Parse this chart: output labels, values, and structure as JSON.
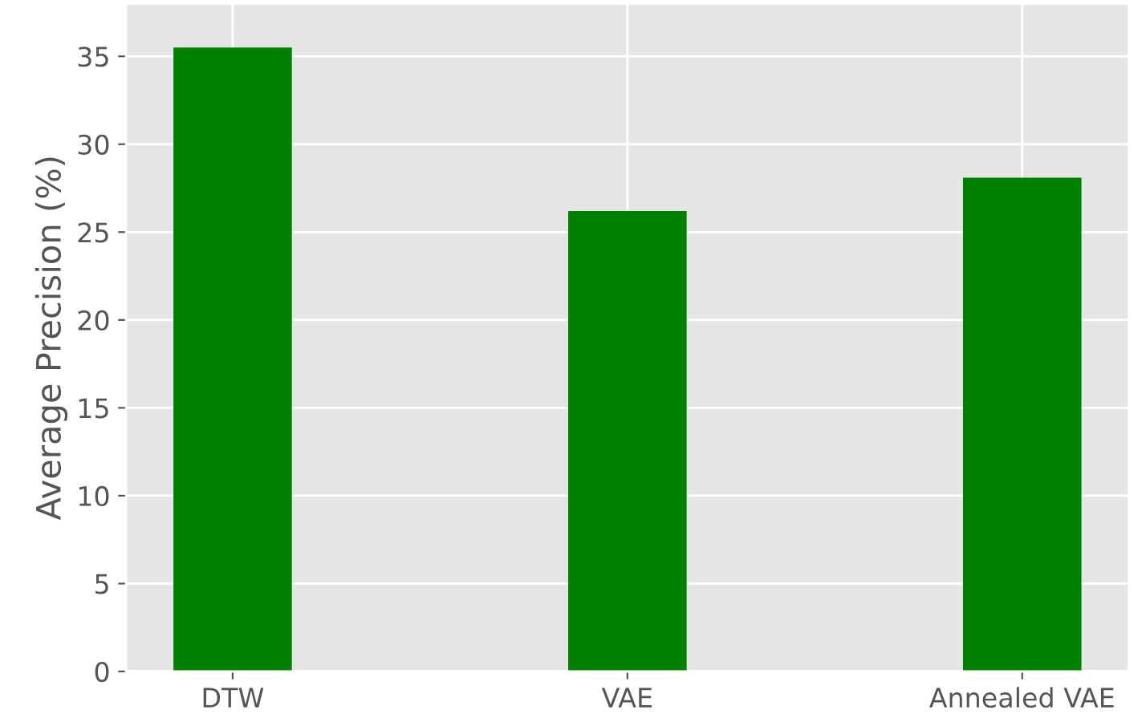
{
  "chart_data": {
    "type": "bar",
    "ylabel": "Average Precision (%)",
    "categories": [
      "DTW",
      "VAE",
      "Annealed VAE"
    ],
    "values": [
      35.5,
      26.2,
      28.1
    ],
    "color": "#008000",
    "ylim": [
      0,
      38
    ],
    "yticks": [
      0,
      5,
      10,
      15,
      20,
      25,
      30,
      35
    ],
    "grid": true
  }
}
